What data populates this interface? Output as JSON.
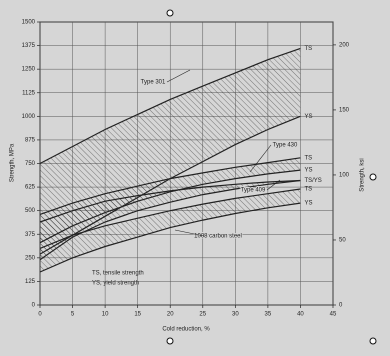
{
  "chart_data": {
    "type": "line",
    "x_label": "Cold reduction, %",
    "y_label": "Strength, MPa",
    "y2_label": "Strength, ksi",
    "x": [
      0,
      5,
      10,
      15,
      20,
      25,
      30,
      35,
      40
    ],
    "xlim": [
      0,
      45
    ],
    "xticks": [
      0,
      5,
      10,
      15,
      20,
      25,
      30,
      35,
      40,
      45
    ],
    "ylim": [
      0,
      1500
    ],
    "yticks": [
      0,
      125,
      250,
      375,
      500,
      625,
      750,
      875,
      1000,
      1125,
      1250,
      1375,
      1500
    ],
    "y2lim": [
      0,
      217.6
    ],
    "y2ticks": [
      0,
      50,
      100,
      150,
      200
    ],
    "grid": true,
    "series": [
      {
        "name": "Type 301",
        "color": "#222222",
        "end_labels": [
          "TS",
          "YS"
        ],
        "ts": [
          750,
          840,
          930,
          1010,
          1090,
          1160,
          1230,
          1300,
          1360
        ],
        "ys": [
          270,
          370,
          470,
          570,
          670,
          760,
          850,
          930,
          1000
        ]
      },
      {
        "name": "Type 430",
        "color": "#222222",
        "end_labels": [
          "TS",
          "YS"
        ],
        "ts": [
          480,
          540,
          590,
          630,
          670,
          700,
          730,
          755,
          780
        ],
        "ys": [
          330,
          420,
          490,
          550,
          600,
          640,
          670,
          695,
          715
        ]
      },
      {
        "name": "Type 409",
        "color": "#222222",
        "end_labels": [
          "TS/YS"
        ],
        "ts": [
          440,
          500,
          550,
          580,
          605,
          625,
          640,
          652,
          660
        ],
        "ys": [
          240,
          360,
          440,
          500,
          545,
          585,
          615,
          640,
          660
        ]
      },
      {
        "name": "1008 carbon steel",
        "color": "#222222",
        "end_labels": [
          "TS",
          "YS"
        ],
        "ts": [
          300,
          370,
          420,
          460,
          500,
          535,
          565,
          590,
          615
        ],
        "ys": [
          175,
          250,
          310,
          360,
          410,
          450,
          485,
          515,
          540
        ]
      }
    ],
    "annotations": [
      "TS, tensile strength",
      "YS, yield strength"
    ]
  }
}
